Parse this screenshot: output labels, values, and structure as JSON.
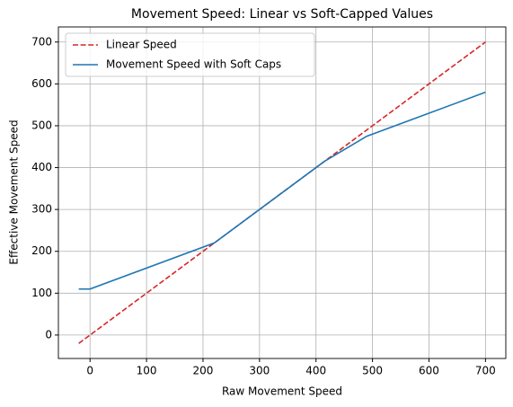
{
  "chart_data": {
    "type": "line",
    "title": "Movement Speed: Linear vs Soft-Capped Values",
    "xlabel": "Raw Movement Speed",
    "ylabel": "Effective Movement Speed",
    "series": [
      {
        "name": "Linear Speed",
        "color": "#d62728",
        "linestyle": "dashed",
        "x": [
          -20,
          700
        ],
        "values": [
          -20,
          700
        ]
      },
      {
        "name": "Movement Speed with Soft Caps",
        "color": "#1f77b4",
        "linestyle": "solid",
        "x": [
          -20,
          0,
          220,
          415,
          490,
          700
        ],
        "values": [
          110,
          110,
          220,
          415,
          475,
          580
        ]
      }
    ],
    "xlim": [
      -56,
      736
    ],
    "ylim": [
      -56,
      736
    ],
    "xticks": [
      0,
      100,
      200,
      300,
      400,
      500,
      600,
      700
    ],
    "yticks": [
      0,
      100,
      200,
      300,
      400,
      500,
      600,
      700
    ],
    "grid": true,
    "legend": "upper left"
  }
}
